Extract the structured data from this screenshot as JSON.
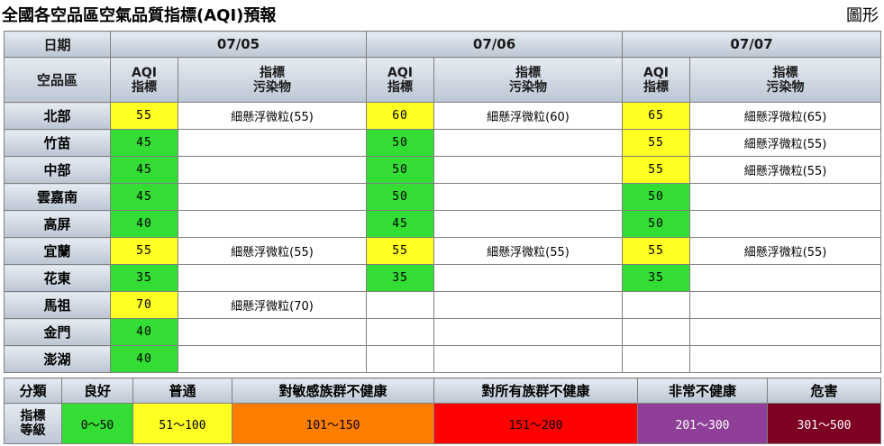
{
  "page": {
    "title": "全國各空品區空氣品質指標(AQI)預報",
    "graph_link": "圖形"
  },
  "table": {
    "date_label": "日期",
    "region_label": "空品區",
    "dates": [
      "07/05",
      "07/06",
      "07/07"
    ],
    "aqi_header": [
      "AQI",
      "指標"
    ],
    "pollutant_header": [
      "指標",
      "污染物"
    ],
    "rows": [
      {
        "region": "北部",
        "days": [
          {
            "aqi": "55",
            "level": "y",
            "pollutant": "細懸浮微粒(55)"
          },
          {
            "aqi": "60",
            "level": "y",
            "pollutant": "細懸浮微粒(60)"
          },
          {
            "aqi": "65",
            "level": "y",
            "pollutant": "細懸浮微粒(65)"
          }
        ]
      },
      {
        "region": "竹苗",
        "days": [
          {
            "aqi": "45",
            "level": "g",
            "pollutant": ""
          },
          {
            "aqi": "50",
            "level": "g",
            "pollutant": ""
          },
          {
            "aqi": "55",
            "level": "y",
            "pollutant": "細懸浮微粒(55)"
          }
        ]
      },
      {
        "region": "中部",
        "days": [
          {
            "aqi": "45",
            "level": "g",
            "pollutant": ""
          },
          {
            "aqi": "50",
            "level": "g",
            "pollutant": ""
          },
          {
            "aqi": "55",
            "level": "y",
            "pollutant": "細懸浮微粒(55)"
          }
        ]
      },
      {
        "region": "雲嘉南",
        "days": [
          {
            "aqi": "45",
            "level": "g",
            "pollutant": ""
          },
          {
            "aqi": "50",
            "level": "g",
            "pollutant": ""
          },
          {
            "aqi": "50",
            "level": "g",
            "pollutant": ""
          }
        ]
      },
      {
        "region": "高屏",
        "days": [
          {
            "aqi": "40",
            "level": "g",
            "pollutant": ""
          },
          {
            "aqi": "45",
            "level": "g",
            "pollutant": ""
          },
          {
            "aqi": "50",
            "level": "g",
            "pollutant": ""
          }
        ]
      },
      {
        "region": "宜蘭",
        "days": [
          {
            "aqi": "55",
            "level": "y",
            "pollutant": "細懸浮微粒(55)"
          },
          {
            "aqi": "55",
            "level": "y",
            "pollutant": "細懸浮微粒(55)"
          },
          {
            "aqi": "55",
            "level": "y",
            "pollutant": "細懸浮微粒(55)"
          }
        ]
      },
      {
        "region": "花東",
        "days": [
          {
            "aqi": "35",
            "level": "g",
            "pollutant": ""
          },
          {
            "aqi": "35",
            "level": "g",
            "pollutant": ""
          },
          {
            "aqi": "35",
            "level": "g",
            "pollutant": ""
          }
        ]
      },
      {
        "region": "馬祖",
        "days": [
          {
            "aqi": "70",
            "level": "y",
            "pollutant": "細懸浮微粒(70)"
          },
          {
            "aqi": "",
            "level": "w",
            "pollutant": ""
          },
          {
            "aqi": "",
            "level": "w",
            "pollutant": ""
          }
        ]
      },
      {
        "region": "金門",
        "days": [
          {
            "aqi": "40",
            "level": "g",
            "pollutant": ""
          },
          {
            "aqi": "",
            "level": "w",
            "pollutant": ""
          },
          {
            "aqi": "",
            "level": "w",
            "pollutant": ""
          }
        ]
      },
      {
        "region": "澎湖",
        "days": [
          {
            "aqi": "40",
            "level": "g",
            "pollutant": ""
          },
          {
            "aqi": "",
            "level": "w",
            "pollutant": ""
          },
          {
            "aqi": "",
            "level": "w",
            "pollutant": ""
          }
        ]
      }
    ]
  },
  "legend": {
    "category_label": "分類",
    "level_label": [
      "指標",
      "等級"
    ],
    "items": [
      {
        "name": "良好",
        "range": "0～50",
        "color": "#33dd33",
        "text_color": "#000000"
      },
      {
        "name": "普通",
        "range": "51～100",
        "color": "#ffff22",
        "text_color": "#000000"
      },
      {
        "name": "對敏感族群不健康",
        "range": "101～150",
        "color": "#ff7e00",
        "text_color": "#000000"
      },
      {
        "name": "對所有族群不健康",
        "range": "151～200",
        "color": "#ff0000",
        "text_color": "#000000"
      },
      {
        "name": "非常不健康",
        "range": "201～300",
        "color": "#8f3f97",
        "text_color": "#ffffff"
      },
      {
        "name": "危害",
        "range": "301～500",
        "color": "#7e0023",
        "text_color": "#ffffff"
      }
    ]
  }
}
